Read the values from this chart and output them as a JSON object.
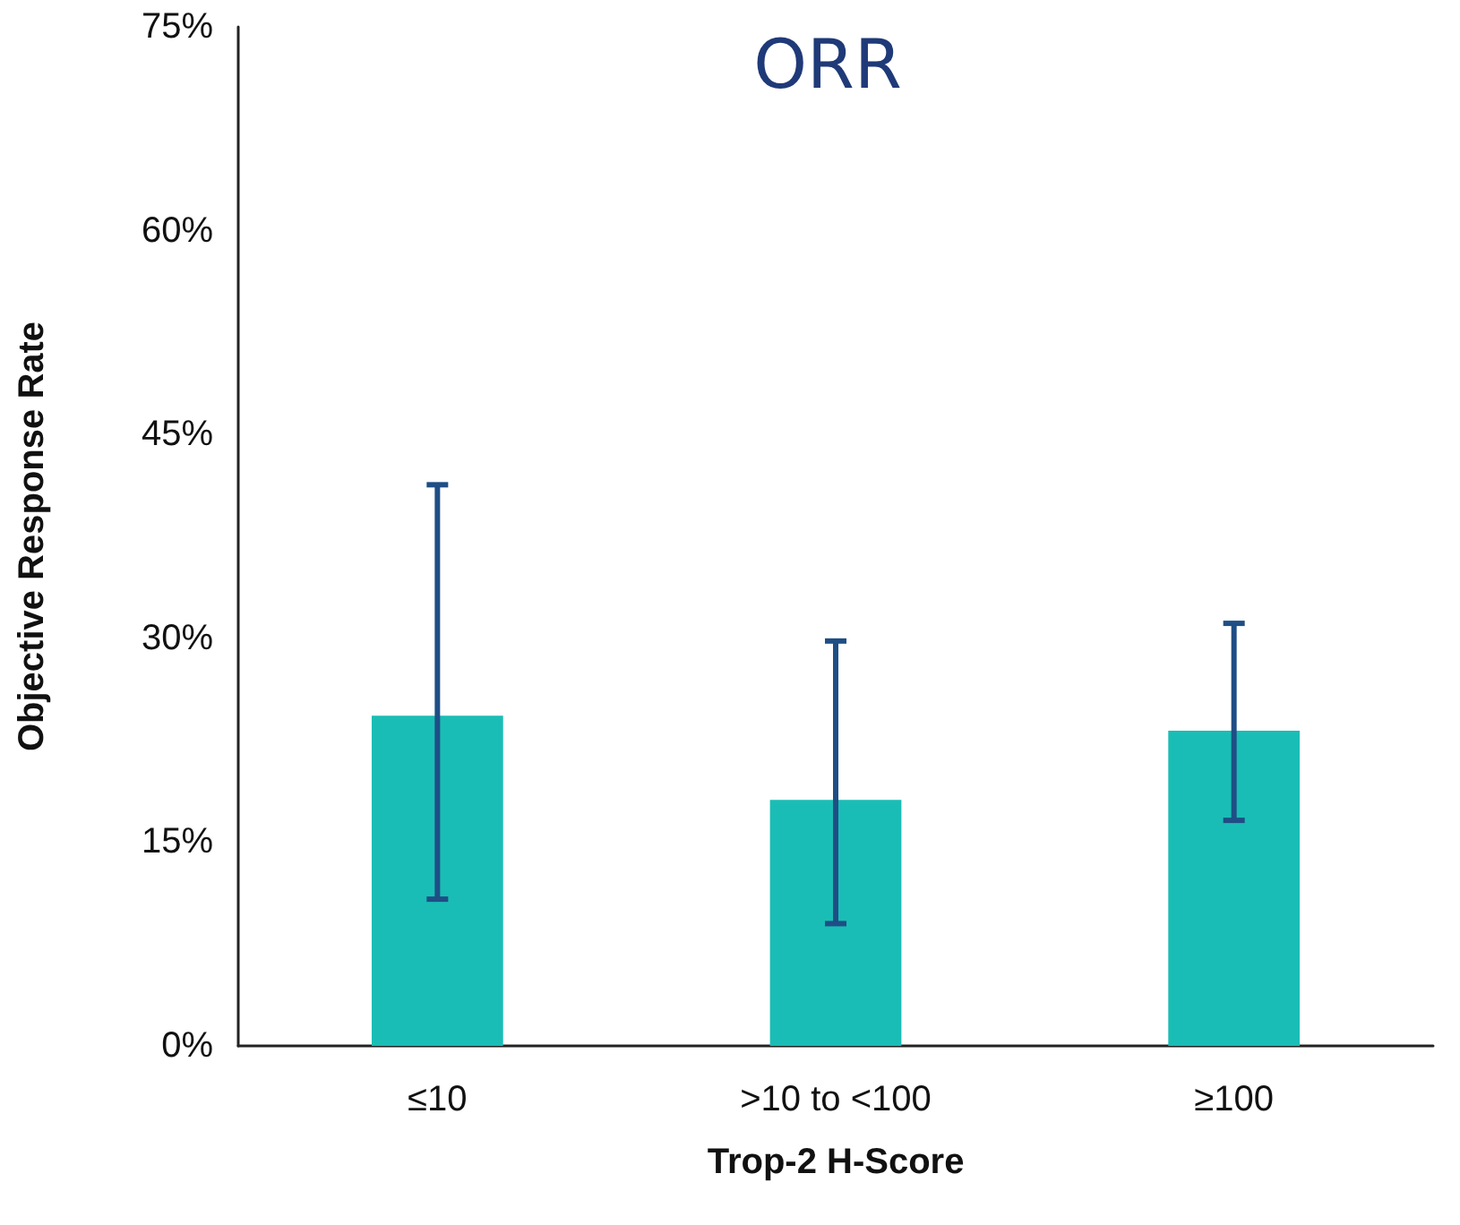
{
  "chart_data": {
    "type": "bar",
    "title": "ORR",
    "xlabel": "Trop-2 H-Score",
    "ylabel": "Objective Response Rate",
    "categories": [
      "≤10",
      ">10 to <100",
      "≥100"
    ],
    "values": [
      24.3,
      18.1,
      23.2
    ],
    "errors": [
      [
        10.8,
        41.3
      ],
      [
        9.0,
        29.8
      ],
      [
        16.6,
        31.1
      ]
    ],
    "color": "#1abdb5",
    "ylim": [
      0,
      75
    ],
    "yticks": [
      {
        "value": 0,
        "label": "0%"
      },
      {
        "value": 15,
        "label": "15%"
      },
      {
        "value": 30,
        "label": "30%"
      },
      {
        "value": 45,
        "label": "45%"
      },
      {
        "value": 60,
        "label": "60%"
      },
      {
        "value": 75,
        "label": "75%"
      }
    ],
    "grid": false
  }
}
